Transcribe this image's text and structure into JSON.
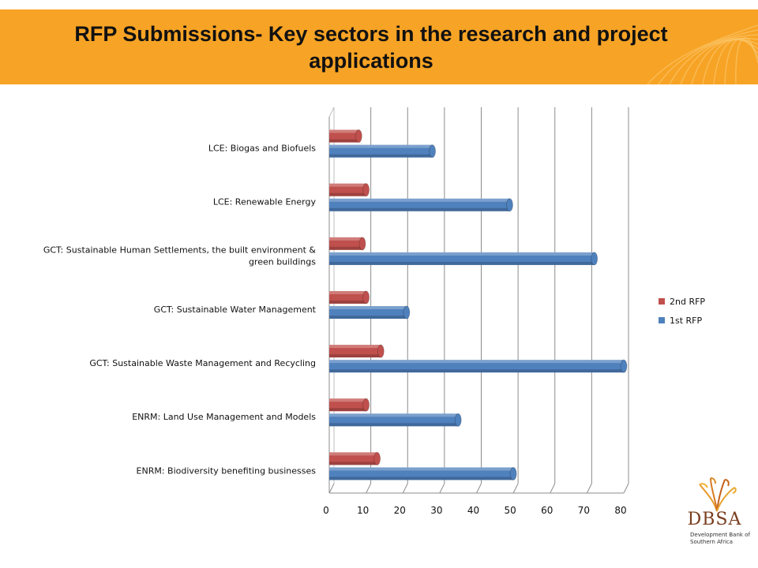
{
  "slide": {
    "title": "RFP Submissions- Key sectors in the research and project applications",
    "banner_color": "#f7a325"
  },
  "logo": {
    "name": "DBSA",
    "subtitle": "Development Bank of Southern Africa",
    "icon": "dbsa-flame-logo"
  },
  "chart_data": {
    "type": "bar",
    "orientation": "horizontal",
    "categories": [
      "LCE: Biogas and Biofuels",
      "LCE: Renewable Energy",
      "GCT: Sustainable Human Settlements, the built environment & green buildings",
      "GCT: Sustainable Water Management",
      "GCT: Sustainable Waste Management and Recycling",
      "ENRM: Land Use Management and Models",
      "ENRM: Biodiversity benefiting businesses"
    ],
    "category_label_lines": [
      [
        "LCE: Biogas and Biofuels"
      ],
      [
        "LCE: Renewable Energy"
      ],
      [
        "GCT: Sustainable Human Settlements, the built environment &",
        "green buildings"
      ],
      [
        "GCT: Sustainable Water Management"
      ],
      [
        "GCT: Sustainable Waste Management and Recycling"
      ],
      [
        "ENRM: Land Use Management and Models"
      ],
      [
        "ENRM: Biodiversity benefiting businesses"
      ]
    ],
    "series": [
      {
        "name": "2nd RFP",
        "color": "#c0504d",
        "values": [
          8,
          10,
          9,
          10,
          14,
          10,
          13
        ]
      },
      {
        "name": "1st RFP",
        "color": "#4f81bd",
        "values": [
          28,
          49,
          72,
          21,
          80,
          35,
          50
        ]
      }
    ],
    "xlim": [
      0,
      80
    ],
    "xticks": [
      "0",
      "10",
      "20",
      "30",
      "40",
      "50",
      "60",
      "70",
      "80"
    ],
    "grid": true,
    "legend_position": "right",
    "style": "3d-cylinder"
  }
}
